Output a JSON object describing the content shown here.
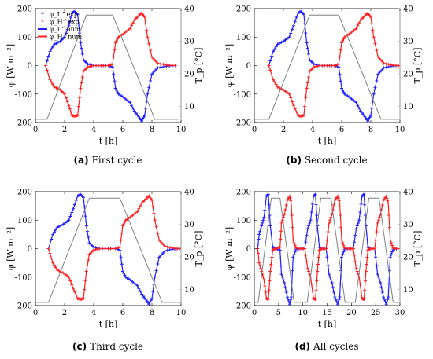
{
  "colors": {
    "phi_L": "#1f1fff",
    "phi_H": "#ff1f1f",
    "temperature": "#808080",
    "temperature_axis": "#a0a0a0"
  },
  "labels": {
    "ylabel_left": "φ [W m⁻²]",
    "ylabel_right": "T_p [°C]",
    "xlabel": "t [h]"
  },
  "legend": {
    "items": [
      {
        "key": "phi_L_exp",
        "text": "φ_L^exp"
      },
      {
        "key": "phi_H_exp",
        "text": "φ_H^exp"
      },
      {
        "key": "phi_L_num",
        "text": "φ_L^num"
      },
      {
        "key": "phi_H_num",
        "text": "φ_H^num"
      }
    ]
  },
  "chart_data": [
    {
      "type": "line",
      "caption_letter": "(a)",
      "caption_text": "First cycle",
      "xlim": [
        0,
        10
      ],
      "ylim": [
        -200,
        200
      ],
      "y2lim": [
        5,
        40
      ],
      "xticks": [
        0,
        2,
        4,
        6,
        8,
        10
      ],
      "yticks": [
        -200,
        -100,
        0,
        100,
        200
      ],
      "y2ticks": [
        10,
        20,
        30,
        40
      ],
      "legend": "top-left",
      "series": [
        {
          "key": "phi_L",
          "cycle_start": 0,
          "x": [
            0.7,
            1.0,
            1.3,
            1.7,
            2.0,
            2.3,
            2.5,
            2.7,
            2.9,
            3.1,
            3.3,
            3.6,
            4.0,
            4.5,
            5.0,
            5.3,
            5.5,
            5.7,
            6.0,
            6.5,
            6.8,
            7.1,
            7.3,
            7.5,
            7.7,
            8.0,
            8.4,
            9.0,
            9.6
          ],
          "y": [
            0,
            50,
            75,
            85,
            100,
            140,
            185,
            190,
            180,
            80,
            20,
            5,
            0,
            0,
            0,
            -5,
            -80,
            -100,
            -110,
            -130,
            -160,
            -180,
            -195,
            -175,
            -100,
            -30,
            -8,
            -2,
            0
          ]
        },
        {
          "key": "phi_H",
          "cycle_start": 0,
          "x": [
            0.7,
            1.0,
            1.3,
            1.7,
            2.0,
            2.3,
            2.5,
            2.7,
            2.9,
            3.1,
            3.3,
            3.6,
            4.0,
            4.5,
            5.0,
            5.3,
            5.5,
            5.7,
            6.0,
            6.5,
            6.8,
            7.1,
            7.3,
            7.5,
            7.7,
            8.0,
            8.4,
            9.0,
            9.6
          ],
          "y": [
            0,
            -50,
            -75,
            -85,
            -100,
            -140,
            -175,
            -178,
            -175,
            -80,
            -20,
            -5,
            0,
            0,
            0,
            5,
            80,
            100,
            110,
            130,
            160,
            175,
            185,
            170,
            100,
            30,
            8,
            2,
            0
          ]
        },
        {
          "key": "temperature",
          "axis": "right",
          "x": [
            0,
            0.8,
            3.5,
            5.3,
            8.2,
            9.8
          ],
          "y": [
            6,
            6,
            38,
            38,
            6,
            6
          ]
        }
      ]
    },
    {
      "type": "line",
      "caption_letter": "(b)",
      "caption_text": "Second cycle",
      "xlim": [
        0,
        10
      ],
      "ylim": [
        -200,
        200
      ],
      "y2lim": [
        5,
        40
      ],
      "xticks": [
        0,
        2,
        4,
        6,
        8,
        10
      ],
      "yticks": [
        -200,
        -100,
        0,
        100,
        200
      ],
      "y2ticks": [
        10,
        20,
        30,
        40
      ],
      "series": [
        {
          "key": "phi_L",
          "x": [
            1.0,
            1.3,
            1.6,
            2.0,
            2.4,
            2.7,
            3.0,
            3.2,
            3.4,
            3.6,
            3.8,
            4.1,
            4.5,
            5.0,
            5.5,
            5.8,
            6.0,
            6.2,
            6.5,
            7.0,
            7.3,
            7.6,
            7.8,
            8.0,
            8.2,
            8.5,
            8.9,
            9.4,
            9.9
          ],
          "y": [
            0,
            50,
            75,
            85,
            100,
            140,
            185,
            190,
            180,
            80,
            20,
            5,
            0,
            0,
            0,
            -5,
            -80,
            -100,
            -110,
            -130,
            -160,
            -180,
            -195,
            -175,
            -100,
            -30,
            -8,
            -2,
            0
          ]
        },
        {
          "key": "phi_H",
          "x": [
            1.0,
            1.3,
            1.6,
            2.0,
            2.4,
            2.7,
            3.0,
            3.2,
            3.4,
            3.6,
            3.8,
            4.1,
            4.5,
            5.0,
            5.5,
            5.8,
            6.0,
            6.2,
            6.5,
            7.0,
            7.3,
            7.6,
            7.8,
            8.0,
            8.2,
            8.5,
            8.9,
            9.4,
            9.9
          ],
          "y": [
            0,
            -50,
            -75,
            -85,
            -100,
            -140,
            -175,
            -178,
            -175,
            -80,
            -20,
            -5,
            0,
            0,
            0,
            5,
            80,
            100,
            110,
            130,
            160,
            175,
            185,
            170,
            100,
            30,
            8,
            2,
            0
          ]
        },
        {
          "key": "temperature",
          "axis": "right",
          "x": [
            0,
            1.0,
            3.8,
            5.8,
            8.7,
            10
          ],
          "y": [
            6,
            6,
            38,
            38,
            6,
            6
          ]
        }
      ]
    },
    {
      "type": "line",
      "caption_letter": "(c)",
      "caption_text": "Third cycle",
      "xlim": [
        0,
        10
      ],
      "ylim": [
        -200,
        200
      ],
      "y2lim": [
        5,
        40
      ],
      "xticks": [
        0,
        2,
        4,
        6,
        8,
        10
      ],
      "yticks": [
        -200,
        -100,
        0,
        100,
        200
      ],
      "y2ticks": [
        10,
        20,
        30,
        40
      ],
      "series": [
        {
          "key": "phi_L",
          "x": [
            0.9,
            1.2,
            1.5,
            1.9,
            2.3,
            2.6,
            2.9,
            3.1,
            3.3,
            3.5,
            3.7,
            4.0,
            4.4,
            5.0,
            5.5,
            5.8,
            6.0,
            6.2,
            6.5,
            7.0,
            7.3,
            7.6,
            7.8,
            8.0,
            8.2,
            8.5,
            8.9,
            9.4,
            9.9
          ],
          "y": [
            0,
            50,
            75,
            85,
            100,
            140,
            185,
            190,
            180,
            80,
            20,
            5,
            0,
            0,
            0,
            -5,
            -80,
            -100,
            -110,
            -130,
            -160,
            -180,
            -195,
            -175,
            -100,
            -30,
            -8,
            -2,
            0
          ]
        },
        {
          "key": "phi_H",
          "x": [
            0.9,
            1.2,
            1.5,
            1.9,
            2.3,
            2.6,
            2.9,
            3.1,
            3.3,
            3.5,
            3.7,
            4.0,
            4.4,
            5.0,
            5.5,
            5.8,
            6.0,
            6.2,
            6.5,
            7.0,
            7.3,
            7.6,
            7.8,
            8.0,
            8.2,
            8.5,
            8.9,
            9.4,
            9.9
          ],
          "y": [
            0,
            -50,
            -75,
            -85,
            -100,
            -140,
            -175,
            -178,
            -175,
            -80,
            -20,
            -5,
            0,
            0,
            0,
            5,
            80,
            100,
            110,
            130,
            160,
            175,
            185,
            170,
            100,
            30,
            8,
            2,
            0
          ]
        },
        {
          "key": "temperature",
          "axis": "right",
          "x": [
            0,
            0.9,
            3.7,
            5.8,
            8.7,
            10
          ],
          "y": [
            6,
            6,
            38,
            38,
            6,
            6
          ]
        }
      ]
    },
    {
      "type": "line",
      "caption_letter": "(d)",
      "caption_text": "All cycles",
      "xlim": [
        0,
        30
      ],
      "ylim": [
        -200,
        200
      ],
      "y2lim": [
        5,
        40
      ],
      "xticks": [
        0,
        5,
        10,
        15,
        20,
        25,
        30
      ],
      "yticks": [
        -200,
        -100,
        0,
        100,
        200
      ],
      "y2ticks": [
        10,
        20,
        30,
        40
      ],
      "series": [
        {
          "key": "phi_L",
          "x": [
            0.7,
            1.0,
            1.5,
            2.0,
            2.5,
            2.9,
            3.3,
            3.8,
            4.5,
            5.3,
            5.6,
            6.2,
            6.8,
            7.3,
            7.6,
            8.0,
            8.6,
            9.6,
            10.4,
            11.0,
            11.6,
            12.2,
            12.6,
            13.0,
            13.4,
            13.9,
            14.8,
            15.4,
            16.0,
            16.6,
            17.2,
            17.6,
            18.0,
            18.6,
            19.6,
            20.4,
            21.0,
            21.6,
            22.2,
            22.6,
            23.0,
            23.4,
            23.9,
            24.8,
            25.4,
            26.0,
            26.6,
            27.2,
            27.6,
            28.0,
            28.6,
            29.6
          ],
          "y": [
            0,
            50,
            80,
            110,
            185,
            190,
            80,
            5,
            0,
            -5,
            -90,
            -120,
            -170,
            -195,
            -170,
            -30,
            -2,
            0,
            0,
            70,
            100,
            185,
            190,
            80,
            5,
            0,
            0,
            -90,
            -120,
            -170,
            -195,
            -170,
            -30,
            -2,
            0,
            0,
            70,
            100,
            185,
            190,
            80,
            5,
            0,
            0,
            -90,
            -120,
            -170,
            -195,
            -170,
            -30,
            -2,
            0
          ]
        },
        {
          "key": "phi_H",
          "x": [
            0.7,
            1.0,
            1.5,
            2.0,
            2.5,
            2.9,
            3.3,
            3.8,
            4.5,
            5.3,
            5.6,
            6.2,
            6.8,
            7.3,
            7.6,
            8.0,
            8.6,
            9.6,
            10.4,
            11.0,
            11.6,
            12.2,
            12.6,
            13.0,
            13.4,
            13.9,
            14.8,
            15.4,
            16.0,
            16.6,
            17.2,
            17.6,
            18.0,
            18.6,
            19.6,
            20.4,
            21.0,
            21.6,
            22.2,
            22.6,
            23.0,
            23.4,
            23.9,
            24.8,
            25.4,
            26.0,
            26.6,
            27.2,
            27.6,
            28.0,
            28.6,
            29.6
          ],
          "y": [
            0,
            -50,
            -80,
            -110,
            -175,
            -178,
            -80,
            -5,
            0,
            5,
            90,
            120,
            170,
            185,
            160,
            30,
            2,
            0,
            0,
            -70,
            -100,
            -175,
            -178,
            -80,
            -5,
            0,
            0,
            90,
            120,
            170,
            185,
            160,
            30,
            2,
            0,
            0,
            -70,
            -100,
            -175,
            -178,
            -80,
            -5,
            0,
            0,
            90,
            120,
            170,
            185,
            160,
            30,
            2,
            0
          ]
        },
        {
          "key": "temperature",
          "axis": "right",
          "x": [
            0,
            0.8,
            3.5,
            5.3,
            8.2,
            10.9,
            13.7,
            15.8,
            18.7,
            20.8,
            23.6,
            25.7,
            28.6,
            30
          ],
          "y": [
            6,
            6,
            38,
            38,
            6,
            6,
            38,
            38,
            6,
            6,
            38,
            38,
            6,
            6
          ]
        }
      ]
    }
  ]
}
